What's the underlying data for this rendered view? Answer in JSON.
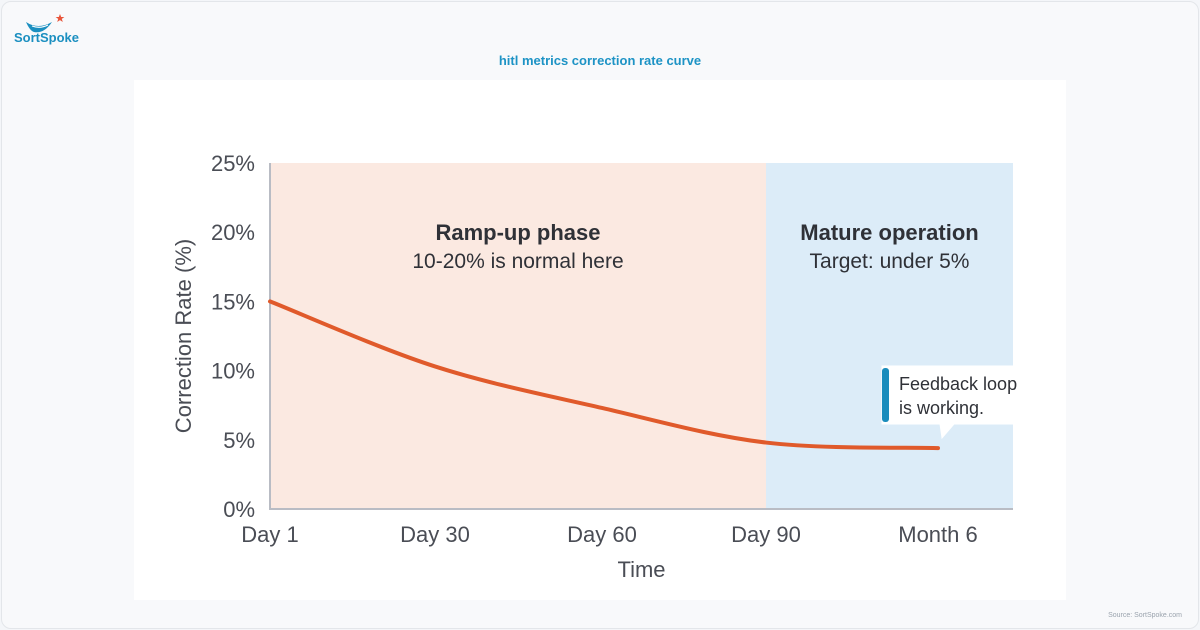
{
  "brand": {
    "logo_text": "SortSpoke"
  },
  "page_title": "hitl metrics correction rate curve",
  "source_note": "Source: SortSpoke.com",
  "colors": {
    "line": "#e05a2b",
    "ramp_zone": "#fbe9e1",
    "mature_zone": "#dcecf8",
    "accent": "#1b8fc0",
    "callout_bar": "#1a8cbc"
  },
  "chart_data": {
    "type": "line",
    "title": "",
    "xlabel": "Time",
    "ylabel": "Correction Rate (%)",
    "x_ticks": [
      "Day 1",
      "Day 30",
      "Day 60",
      "Day 90",
      "Month 6"
    ],
    "y_ticks": [
      "0%",
      "5%",
      "10%",
      "15%",
      "20%",
      "25%"
    ],
    "ylim": [
      0,
      25
    ],
    "grid": false,
    "series": [
      {
        "x": [
          "Day 1",
          "Day 30",
          "Day 60",
          "Day 90",
          "Month 6"
        ],
        "values": [
          15,
          10.3,
          7.3,
          4.8,
          4.4
        ]
      }
    ],
    "zones": [
      {
        "title": "Ramp-up phase",
        "subtitle": "10-20% is normal here",
        "from": "Day 1",
        "to": "Day 90"
      },
      {
        "title": "Mature operation",
        "subtitle": "Target: under 5%",
        "from": "Day 90",
        "to": "end"
      }
    ],
    "annotations": [
      {
        "lines": [
          "Feedback loop",
          "is working."
        ],
        "at": "Month 6",
        "value": 4.4
      }
    ]
  }
}
